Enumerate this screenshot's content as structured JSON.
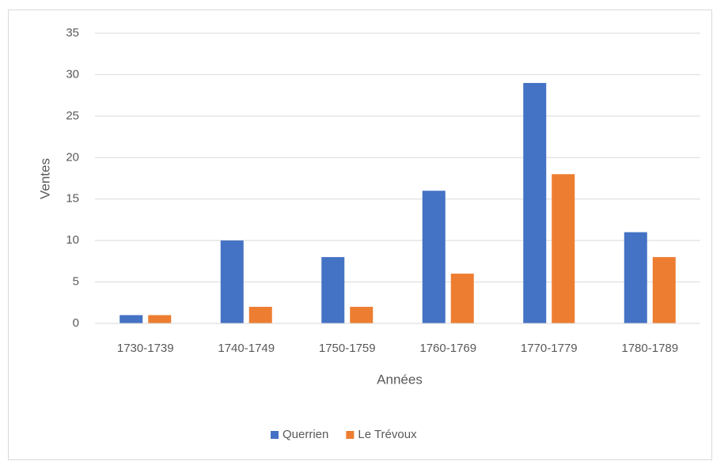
{
  "chart_data": {
    "type": "bar",
    "x_label": "Années",
    "y_label": "Ventes",
    "categories": [
      "1730-1739",
      "1740-1749",
      "1750-1759",
      "1760-1769",
      "1770-1779",
      "1780-1789"
    ],
    "series": [
      {
        "name": "Querrien",
        "color": "#4472c4",
        "values": [
          1,
          10,
          8,
          16,
          29,
          11
        ]
      },
      {
        "name": "Le Trévoux",
        "color": "#ed7d31",
        "values": [
          1,
          2,
          2,
          6,
          18,
          8
        ]
      }
    ],
    "ylim": [
      0,
      35
    ],
    "yticks": [
      0,
      5,
      10,
      15,
      20,
      25,
      30,
      35
    ],
    "grid": true,
    "legend": "bottom"
  }
}
